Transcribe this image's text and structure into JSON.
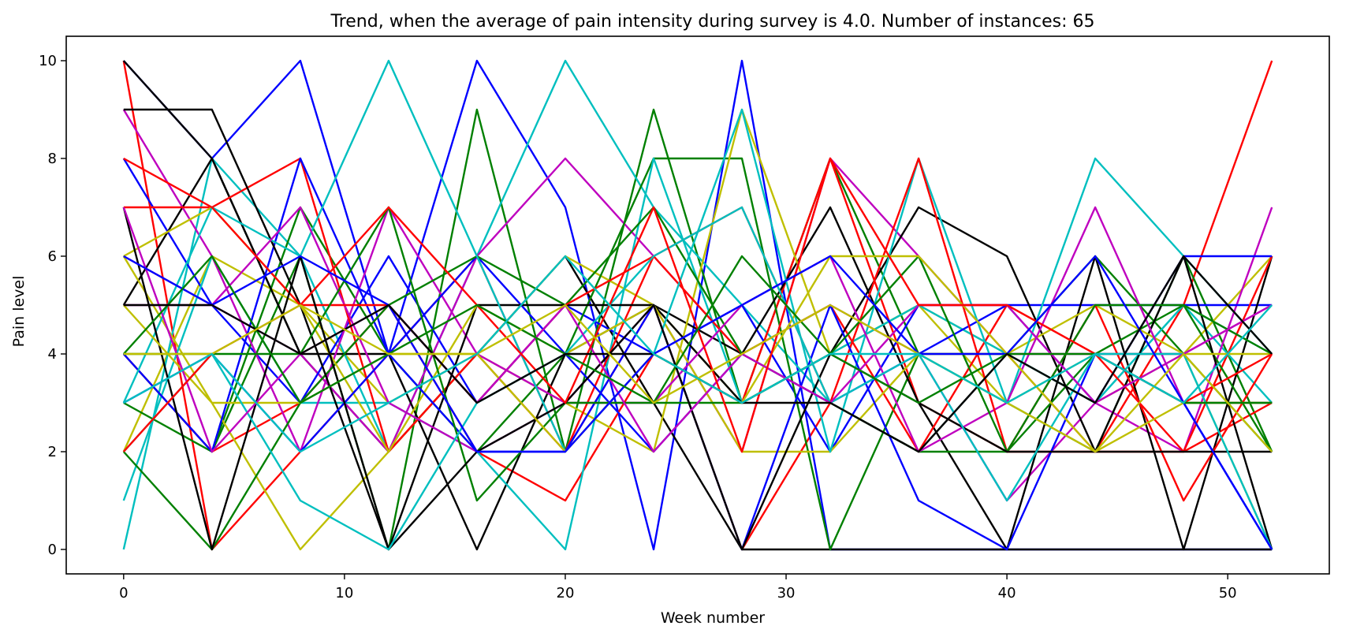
{
  "chart_data": {
    "type": "line",
    "title": "Trend, when the average of pain intensity during survey is 4.0. Number of instances: 65",
    "xlabel": "Week number",
    "ylabel": "Pain level",
    "x": [
      0,
      4,
      8,
      12,
      16,
      20,
      24,
      28,
      32,
      36,
      40,
      44,
      48,
      52
    ],
    "xlim": [
      -2.6,
      54.6
    ],
    "ylim": [
      -0.5,
      10.5
    ],
    "xticks": [
      0,
      10,
      20,
      30,
      40,
      50
    ],
    "yticks": [
      0,
      2,
      4,
      6,
      8,
      10
    ],
    "grid": false,
    "legend": "none",
    "series_colors": [
      "#ff0000",
      "#0000ff",
      "#008000",
      "#000000",
      "#bfbf00",
      "#00bfbf",
      "#bf00bf"
    ],
    "series": [
      {
        "values": [
          10,
          0,
          2,
          4,
          6,
          2,
          5,
          0,
          3,
          2,
          4,
          2,
          5,
          10
        ]
      },
      {
        "values": [
          10,
          8,
          10,
          4,
          10,
          7,
          0,
          10,
          0,
          0,
          0,
          0,
          0,
          0
        ]
      },
      {
        "values": [
          4,
          2,
          6,
          0,
          9,
          2,
          9,
          3,
          8,
          4,
          3,
          2,
          6,
          2
        ]
      },
      {
        "values": [
          10,
          8,
          4,
          2,
          4,
          6,
          3,
          0,
          0,
          0,
          0,
          0,
          0,
          0
        ]
      },
      {
        "values": [
          2,
          6,
          5,
          3,
          4,
          6,
          5,
          3,
          4,
          5,
          4,
          3,
          4,
          6
        ]
      },
      {
        "values": [
          0,
          8,
          6,
          2,
          6,
          10,
          7,
          5,
          3,
          2,
          4,
          3,
          5,
          3
        ]
      },
      {
        "values": [
          6,
          5,
          4,
          2,
          6,
          8,
          6,
          4,
          5,
          4,
          1,
          3,
          2,
          7
        ]
      },
      {
        "values": [
          4,
          2,
          3,
          5,
          2,
          1,
          4,
          3,
          8,
          3,
          2,
          2,
          2,
          3
        ]
      },
      {
        "values": [
          8,
          5,
          3,
          6,
          3,
          5,
          4,
          5,
          2,
          5,
          5,
          5,
          5,
          5
        ]
      },
      {
        "values": [
          3,
          2,
          7,
          4,
          2,
          4,
          8,
          8,
          0,
          4,
          4,
          6,
          4,
          2
        ]
      },
      {
        "values": [
          5,
          8,
          4,
          4,
          0,
          4,
          5,
          4,
          7,
          3,
          0,
          6,
          0,
          6
        ]
      },
      {
        "values": [
          6,
          3,
          0,
          2,
          4,
          3,
          2,
          9,
          4,
          5,
          3,
          4,
          4,
          0
        ]
      },
      {
        "values": [
          1,
          6,
          3,
          3,
          2,
          0,
          8,
          3,
          4,
          5,
          4,
          3,
          5,
          4
        ]
      },
      {
        "values": [
          9,
          6,
          2,
          7,
          4,
          3,
          5,
          2,
          8,
          6,
          4,
          4,
          4,
          5
        ]
      },
      {
        "values": [
          7,
          7,
          8,
          2,
          4,
          2,
          6,
          4,
          5,
          2,
          5,
          4,
          2,
          6
        ]
      },
      {
        "values": [
          4,
          2,
          8,
          4,
          6,
          4,
          2,
          4,
          3,
          4,
          5,
          3,
          6,
          6
        ]
      },
      {
        "values": [
          2,
          0,
          3,
          5,
          6,
          5,
          7,
          4,
          3,
          2,
          2,
          4,
          5,
          2
        ]
      },
      {
        "values": [
          9,
          9,
          5,
          0,
          5,
          5,
          5,
          3,
          4,
          7,
          6,
          2,
          6,
          0
        ]
      },
      {
        "values": [
          6,
          7,
          5,
          2,
          5,
          4,
          5,
          2,
          2,
          4,
          4,
          5,
          4,
          4
        ]
      },
      {
        "values": [
          3,
          7,
          6,
          10,
          6,
          2,
          4,
          9,
          2,
          8,
          3,
          8,
          6,
          4
        ]
      },
      {
        "values": [
          5,
          5,
          7,
          3,
          2,
          3,
          3,
          5,
          6,
          2,
          3,
          7,
          3,
          3
        ]
      },
      {
        "values": [
          8,
          7,
          5,
          5,
          3,
          5,
          6,
          7,
          3,
          8,
          2,
          5,
          1,
          4
        ]
      },
      {
        "values": [
          3,
          4,
          2,
          4,
          2,
          2,
          5,
          0,
          5,
          1,
          0,
          4,
          3,
          0
        ]
      },
      {
        "values": [
          4,
          4,
          4,
          7,
          1,
          3,
          3,
          3,
          4,
          6,
          2,
          5,
          5,
          4
        ]
      },
      {
        "values": [
          7,
          0,
          6,
          0,
          2,
          3,
          5,
          0,
          4,
          3,
          2,
          2,
          2,
          2
        ]
      },
      {
        "values": [
          5,
          3,
          3,
          4,
          4,
          2,
          4,
          3,
          6,
          6,
          4,
          2,
          3,
          3
        ]
      },
      {
        "values": [
          2,
          4,
          1,
          0,
          3,
          4,
          6,
          7,
          3,
          4,
          1,
          4,
          4,
          0
        ]
      },
      {
        "values": [
          7,
          2,
          4,
          5,
          3,
          5,
          2,
          4,
          3,
          5,
          5,
          3,
          4,
          5
        ]
      },
      {
        "values": [
          2,
          4,
          5,
          7,
          5,
          3,
          7,
          2,
          8,
          5,
          5,
          4,
          3,
          4
        ]
      },
      {
        "values": [
          6,
          5,
          6,
          5,
          2,
          2,
          4,
          5,
          6,
          4,
          4,
          6,
          3,
          0
        ]
      },
      {
        "values": [
          4,
          6,
          3,
          4,
          5,
          4,
          3,
          6,
          4,
          3,
          4,
          4,
          3,
          3
        ]
      },
      {
        "values": [
          5,
          5,
          4,
          5,
          3,
          4,
          4,
          3,
          3,
          2,
          4,
          3,
          6,
          4
        ]
      },
      {
        "values": [
          4,
          4,
          5,
          4,
          4,
          5,
          3,
          4,
          5,
          4,
          3,
          2,
          4,
          2
        ]
      },
      {
        "values": [
          3,
          4,
          2,
          3,
          4,
          6,
          4,
          3,
          4,
          4,
          3,
          4,
          3,
          5
        ]
      }
    ]
  }
}
